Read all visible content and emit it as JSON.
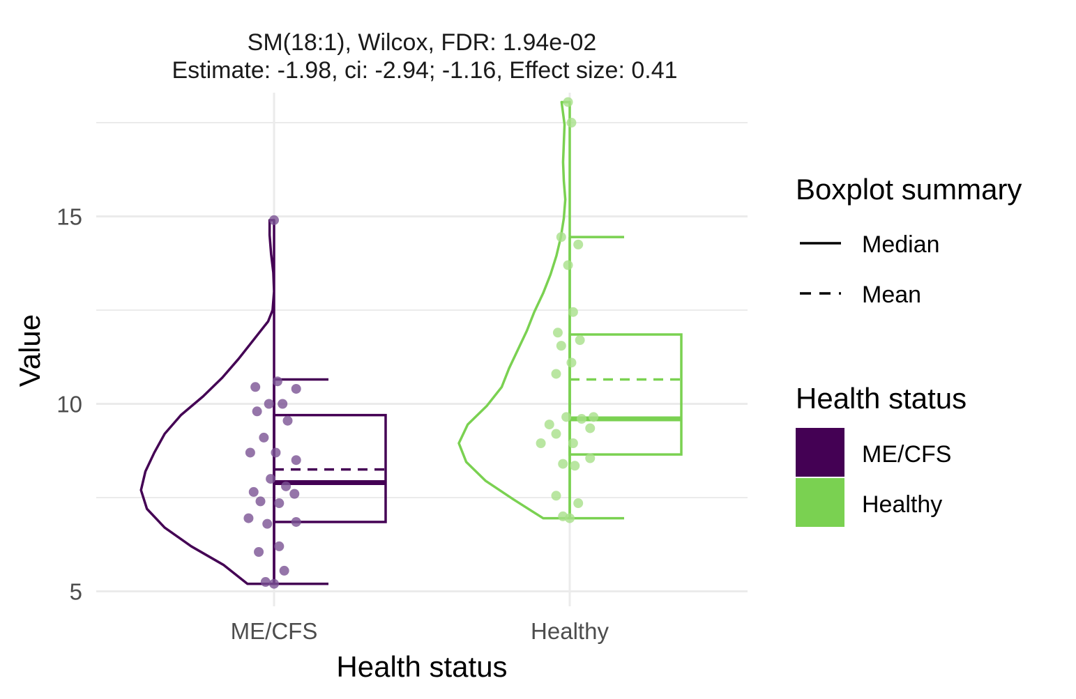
{
  "chart_data": {
    "type": "violin-boxplot",
    "title_line1": "SM(18:1), Wilcox, FDR: 1.94e-02",
    "title_line2": "Estimate: -1.98, ci: -2.94;  -1.16,  Effect size: 0.41",
    "xlabel": "Health status",
    "ylabel": "Value",
    "ylim": [
      4.6,
      18.3
    ],
    "y_ticks": [
      5,
      10,
      15
    ],
    "y_tick_labels": [
      "5",
      "10",
      "15"
    ],
    "categories": [
      "ME/CFS",
      "Healthy"
    ],
    "grid": true,
    "series": [
      {
        "name": "ME/CFS",
        "color": "#440154",
        "point_color": "#7b5294",
        "stats": {
          "min": 5.2,
          "q1": 6.85,
          "median": 7.9,
          "mean": 8.25,
          "q3": 9.7,
          "max": 10.65
        },
        "violin_range": [
          5.2,
          14.9
        ],
        "violin_profile": [
          [
            5.2,
            0.18
          ],
          [
            5.7,
            0.34
          ],
          [
            6.2,
            0.56
          ],
          [
            6.7,
            0.74
          ],
          [
            7.2,
            0.86
          ],
          [
            7.7,
            0.9
          ],
          [
            8.2,
            0.87
          ],
          [
            8.7,
            0.81
          ],
          [
            9.2,
            0.74
          ],
          [
            9.7,
            0.63
          ],
          [
            10.2,
            0.48
          ],
          [
            10.7,
            0.35
          ],
          [
            11.2,
            0.24
          ],
          [
            11.7,
            0.14
          ],
          [
            12.2,
            0.04
          ],
          [
            12.5,
            0.01
          ],
          [
            13.0,
            0.0
          ],
          [
            13.5,
            0.005
          ],
          [
            14.0,
            0.02
          ],
          [
            14.5,
            0.03
          ],
          [
            14.9,
            0.03
          ]
        ],
        "points": [
          [
            0.0,
            14.9
          ],
          [
            0.02,
            10.6
          ],
          [
            -0.11,
            10.45
          ],
          [
            0.13,
            10.4
          ],
          [
            -0.03,
            10.0
          ],
          [
            0.05,
            10.0
          ],
          [
            -0.1,
            9.8
          ],
          [
            0.08,
            9.55
          ],
          [
            -0.06,
            9.1
          ],
          [
            -0.14,
            8.7
          ],
          [
            0.01,
            8.7
          ],
          [
            0.13,
            8.5
          ],
          [
            -0.02,
            8.0
          ],
          [
            0.07,
            7.8
          ],
          [
            -0.12,
            7.65
          ],
          [
            0.12,
            7.6
          ],
          [
            -0.08,
            7.4
          ],
          [
            0.03,
            7.35
          ],
          [
            -0.15,
            6.95
          ],
          [
            -0.04,
            6.8
          ],
          [
            0.13,
            6.85
          ],
          [
            0.03,
            6.2
          ],
          [
            -0.09,
            6.05
          ],
          [
            0.06,
            5.55
          ],
          [
            -0.05,
            5.25
          ],
          [
            0.0,
            5.2
          ]
        ]
      },
      {
        "name": "Healthy",
        "color": "#7ad151",
        "point_color": "#a8e08a",
        "stats": {
          "min": 6.95,
          "q1": 8.65,
          "median": 9.6,
          "mean": 10.65,
          "q3": 11.85,
          "max": 14.45
        },
        "violin_range": [
          6.95,
          18.05
        ],
        "violin_profile": [
          [
            6.95,
            0.18
          ],
          [
            7.45,
            0.38
          ],
          [
            7.95,
            0.57
          ],
          [
            8.45,
            0.7
          ],
          [
            8.95,
            0.75
          ],
          [
            9.45,
            0.69
          ],
          [
            9.95,
            0.56
          ],
          [
            10.45,
            0.46
          ],
          [
            10.95,
            0.41
          ],
          [
            11.45,
            0.35
          ],
          [
            11.95,
            0.29
          ],
          [
            12.45,
            0.24
          ],
          [
            12.95,
            0.18
          ],
          [
            13.45,
            0.13
          ],
          [
            13.95,
            0.09
          ],
          [
            14.45,
            0.06
          ],
          [
            14.95,
            0.04
          ],
          [
            15.45,
            0.03
          ],
          [
            15.95,
            0.04
          ],
          [
            16.45,
            0.045
          ],
          [
            16.95,
            0.04
          ],
          [
            17.45,
            0.035
          ],
          [
            18.05,
            0.055
          ]
        ],
        "points": [
          [
            -0.01,
            18.05
          ],
          [
            0.01,
            17.5
          ],
          [
            -0.05,
            14.45
          ],
          [
            0.05,
            14.25
          ],
          [
            -0.01,
            13.7
          ],
          [
            0.02,
            12.45
          ],
          [
            -0.07,
            11.9
          ],
          [
            0.06,
            11.7
          ],
          [
            -0.05,
            11.55
          ],
          [
            0.01,
            11.1
          ],
          [
            -0.08,
            10.8
          ],
          [
            -0.02,
            9.65
          ],
          [
            0.07,
            9.6
          ],
          [
            0.14,
            9.65
          ],
          [
            -0.12,
            9.45
          ],
          [
            0.12,
            9.35
          ],
          [
            -0.08,
            9.2
          ],
          [
            0.02,
            8.95
          ],
          [
            -0.17,
            8.95
          ],
          [
            0.12,
            8.55
          ],
          [
            -0.04,
            8.4
          ],
          [
            0.03,
            8.35
          ],
          [
            -0.08,
            7.55
          ],
          [
            0.05,
            7.35
          ],
          [
            -0.04,
            7.0
          ],
          [
            0.0,
            6.95
          ]
        ]
      }
    ],
    "legends": [
      {
        "title": "Boxplot summary",
        "entries": [
          {
            "label": "Median",
            "style": "solid"
          },
          {
            "label": "Mean",
            "style": "dashed"
          }
        ]
      },
      {
        "title": "Health status",
        "entries": [
          {
            "label": "ME/CFS",
            "color": "#440154"
          },
          {
            "label": "Healthy",
            "color": "#7ad151"
          }
        ]
      }
    ],
    "legend_position": "right"
  }
}
